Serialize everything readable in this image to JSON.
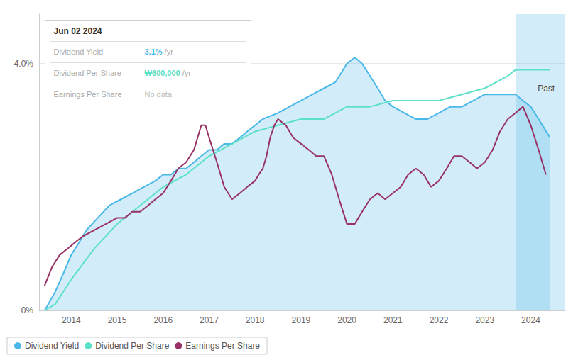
{
  "chart_data": {
    "type": "line",
    "xlim": [
      2013.3,
      2024.75
    ],
    "ylim": [
      0,
      0.048
    ],
    "xticks": [
      2014,
      2015,
      2016,
      2017,
      2018,
      2019,
      2020,
      2021,
      2022,
      2023,
      2024
    ],
    "yticks": [
      {
        "value": 0,
        "label": "0%"
      },
      {
        "value": 0.04,
        "label": "4.0%"
      }
    ],
    "grid": true,
    "legend": "lower left",
    "series": [
      {
        "name": "Dividend Yield",
        "type": "area",
        "color": "#4ab8e8",
        "x": [
          2013.42,
          2013.5,
          2013.65,
          2013.83,
          2014.0,
          2014.17,
          2014.33,
          2014.58,
          2014.83,
          2015.08,
          2015.33,
          2015.58,
          2015.83,
          2016.0,
          2016.17,
          2016.33,
          2016.5,
          2016.67,
          2016.83,
          2017.0,
          2017.17,
          2017.33,
          2017.5,
          2017.67,
          2017.83,
          2018.0,
          2018.17,
          2018.5,
          2018.75,
          2019.0,
          2019.25,
          2019.5,
          2019.75,
          2020.0,
          2020.17,
          2020.33,
          2020.5,
          2020.67,
          2020.83,
          2021.0,
          2021.25,
          2021.5,
          2021.75,
          2022.0,
          2022.25,
          2022.5,
          2022.75,
          2023.0,
          2023.25,
          2023.5,
          2023.67,
          2023.83,
          2024.0,
          2024.17,
          2024.42
        ],
        "values": [
          0.0,
          0.001,
          0.003,
          0.006,
          0.009,
          0.011,
          0.013,
          0.015,
          0.017,
          0.018,
          0.019,
          0.02,
          0.021,
          0.022,
          0.022,
          0.023,
          0.023,
          0.024,
          0.025,
          0.026,
          0.026,
          0.027,
          0.027,
          0.028,
          0.029,
          0.03,
          0.031,
          0.032,
          0.033,
          0.034,
          0.035,
          0.036,
          0.037,
          0.04,
          0.041,
          0.04,
          0.038,
          0.036,
          0.034,
          0.033,
          0.032,
          0.031,
          0.031,
          0.032,
          0.033,
          0.033,
          0.034,
          0.035,
          0.035,
          0.035,
          0.035,
          0.034,
          0.033,
          0.031,
          0.028
        ]
      },
      {
        "name": "Dividend Per Share",
        "type": "line",
        "color": "#5de0c8",
        "x": [
          2013.42,
          2013.65,
          2014.0,
          2014.5,
          2015.0,
          2015.5,
          2016.0,
          2016.5,
          2017.0,
          2017.5,
          2018.0,
          2018.5,
          2019.0,
          2019.25,
          2019.5,
          2019.75,
          2020.0,
          2020.5,
          2021.0,
          2021.5,
          2022.0,
          2022.5,
          2023.0,
          2023.25,
          2023.5,
          2023.67,
          2023.83,
          2024.0,
          2024.25,
          2024.42
        ],
        "values": [
          0.0,
          0.001,
          0.005,
          0.01,
          0.014,
          0.017,
          0.02,
          0.022,
          0.025,
          0.027,
          0.029,
          0.03,
          0.031,
          0.031,
          0.031,
          0.032,
          0.033,
          0.033,
          0.034,
          0.034,
          0.034,
          0.035,
          0.036,
          0.037,
          0.038,
          0.039,
          0.039,
          0.039,
          0.039,
          0.039
        ]
      },
      {
        "name": "Earnings Per Share",
        "type": "line",
        "color": "#993366",
        "x": [
          2013.42,
          2013.58,
          2013.75,
          2013.92,
          2014.08,
          2014.25,
          2014.5,
          2014.75,
          2015.0,
          2015.17,
          2015.33,
          2015.5,
          2015.67,
          2015.83,
          2016.0,
          2016.17,
          2016.33,
          2016.5,
          2016.67,
          2016.75,
          2016.83,
          2016.92,
          2017.0,
          2017.17,
          2017.33,
          2017.5,
          2017.67,
          2017.83,
          2018.0,
          2018.08,
          2018.17,
          2018.25,
          2018.33,
          2018.42,
          2018.5,
          2018.67,
          2018.83,
          2019.0,
          2019.17,
          2019.33,
          2019.5,
          2019.67,
          2019.83,
          2020.0,
          2020.17,
          2020.25,
          2020.33,
          2020.5,
          2020.67,
          2020.83,
          2021.0,
          2021.17,
          2021.33,
          2021.5,
          2021.67,
          2021.83,
          2022.0,
          2022.17,
          2022.33,
          2022.5,
          2022.67,
          2022.83,
          2023.0,
          2023.17,
          2023.33,
          2023.5,
          2023.67,
          2023.83,
          2024.0,
          2024.17,
          2024.33
        ],
        "values": [
          0.004,
          0.007,
          0.009,
          0.01,
          0.011,
          0.012,
          0.013,
          0.014,
          0.015,
          0.015,
          0.016,
          0.016,
          0.017,
          0.018,
          0.019,
          0.021,
          0.023,
          0.024,
          0.026,
          0.028,
          0.03,
          0.03,
          0.028,
          0.024,
          0.02,
          0.018,
          0.019,
          0.02,
          0.021,
          0.022,
          0.023,
          0.025,
          0.028,
          0.03,
          0.031,
          0.03,
          0.028,
          0.027,
          0.026,
          0.025,
          0.025,
          0.022,
          0.018,
          0.014,
          0.014,
          0.015,
          0.016,
          0.018,
          0.019,
          0.018,
          0.019,
          0.02,
          0.022,
          0.023,
          0.022,
          0.02,
          0.021,
          0.023,
          0.025,
          0.025,
          0.024,
          0.023,
          0.024,
          0.026,
          0.029,
          0.031,
          0.032,
          0.033,
          0.03,
          0.026,
          0.022
        ]
      }
    ],
    "spans": [
      {
        "from": 2023.67,
        "to": 2024.75
      }
    ],
    "annotations": [
      {
        "text": "Past",
        "x": 2024.15,
        "y": 0.036
      }
    ],
    "tooltip": {
      "title": "Jun 02 2024",
      "rows": [
        {
          "label": "Dividend Yield",
          "value": "3.1%",
          "unit": "/yr",
          "color": "#4ab8e8"
        },
        {
          "label": "Dividend Per Share",
          "value": "₩600,000",
          "unit": "/yr",
          "color": "#5de0c8"
        },
        {
          "label": "Earnings Per Share",
          "value": "No data"
        }
      ]
    }
  }
}
